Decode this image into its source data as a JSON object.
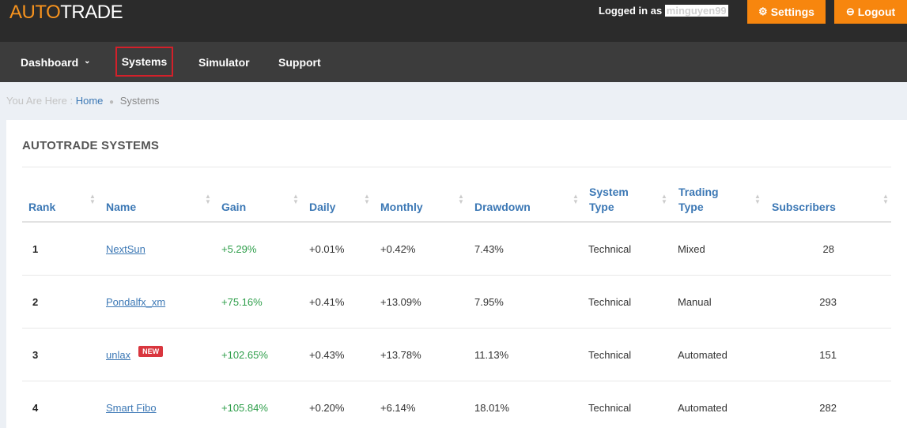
{
  "header": {
    "logo_part1": "AUTO",
    "logo_part2": "TRADE",
    "logged_in_prefix": "Logged in as ",
    "username": "minguyen99",
    "settings_label": "Settings",
    "logout_label": "Logout"
  },
  "nav": {
    "dashboard": "Dashboard",
    "systems": "Systems",
    "simulator": "Simulator",
    "support": "Support"
  },
  "breadcrumb": {
    "prefix": "You Are Here :",
    "home": "Home",
    "current": "Systems"
  },
  "panel": {
    "title": "AUTOTRADE SYSTEMS"
  },
  "table": {
    "headers": {
      "rank": "Rank",
      "name": "Name",
      "gain": "Gain",
      "daily": "Daily",
      "monthly": "Monthly",
      "drawdown": "Drawdown",
      "system_type_1": "System",
      "system_type_2": "Type",
      "trading_type_1": "Trading",
      "trading_type_2": "Type",
      "subscribers": "Subscribers"
    },
    "rows": [
      {
        "rank": "1",
        "name": "NextSun",
        "badge": "",
        "gain": "+5.29%",
        "daily": "+0.01%",
        "monthly": "+0.42%",
        "drawdown": "7.43%",
        "system_type": "Technical",
        "trading_type": "Mixed",
        "subscribers": "28"
      },
      {
        "rank": "2",
        "name": "Pondalfx_xm",
        "badge": "",
        "gain": "+75.16%",
        "daily": "+0.41%",
        "monthly": "+13.09%",
        "drawdown": "7.95%",
        "system_type": "Technical",
        "trading_type": "Manual",
        "subscribers": "293"
      },
      {
        "rank": "3",
        "name": "unlax",
        "badge": "NEW",
        "gain": "+102.65%",
        "daily": "+0.43%",
        "monthly": "+13.78%",
        "drawdown": "11.13%",
        "system_type": "Technical",
        "trading_type": "Automated",
        "subscribers": "151"
      },
      {
        "rank": "4",
        "name": "Smart Fibo",
        "badge": "",
        "gain": "+105.84%",
        "daily": "+0.20%",
        "monthly": "+6.14%",
        "drawdown": "18.01%",
        "system_type": "Technical",
        "trading_type": "Automated",
        "subscribers": "282"
      }
    ]
  },
  "icons": {
    "settings": "gear-icon",
    "logout": "logout-icon",
    "sort": "sort-icon"
  },
  "colors": {
    "accent": "#f7860e",
    "header_bg": "#2b2b2b",
    "nav_bg": "#3c3c3c",
    "link": "#3c78b5",
    "gain": "#2e9e4a",
    "badge": "#d9363e"
  }
}
